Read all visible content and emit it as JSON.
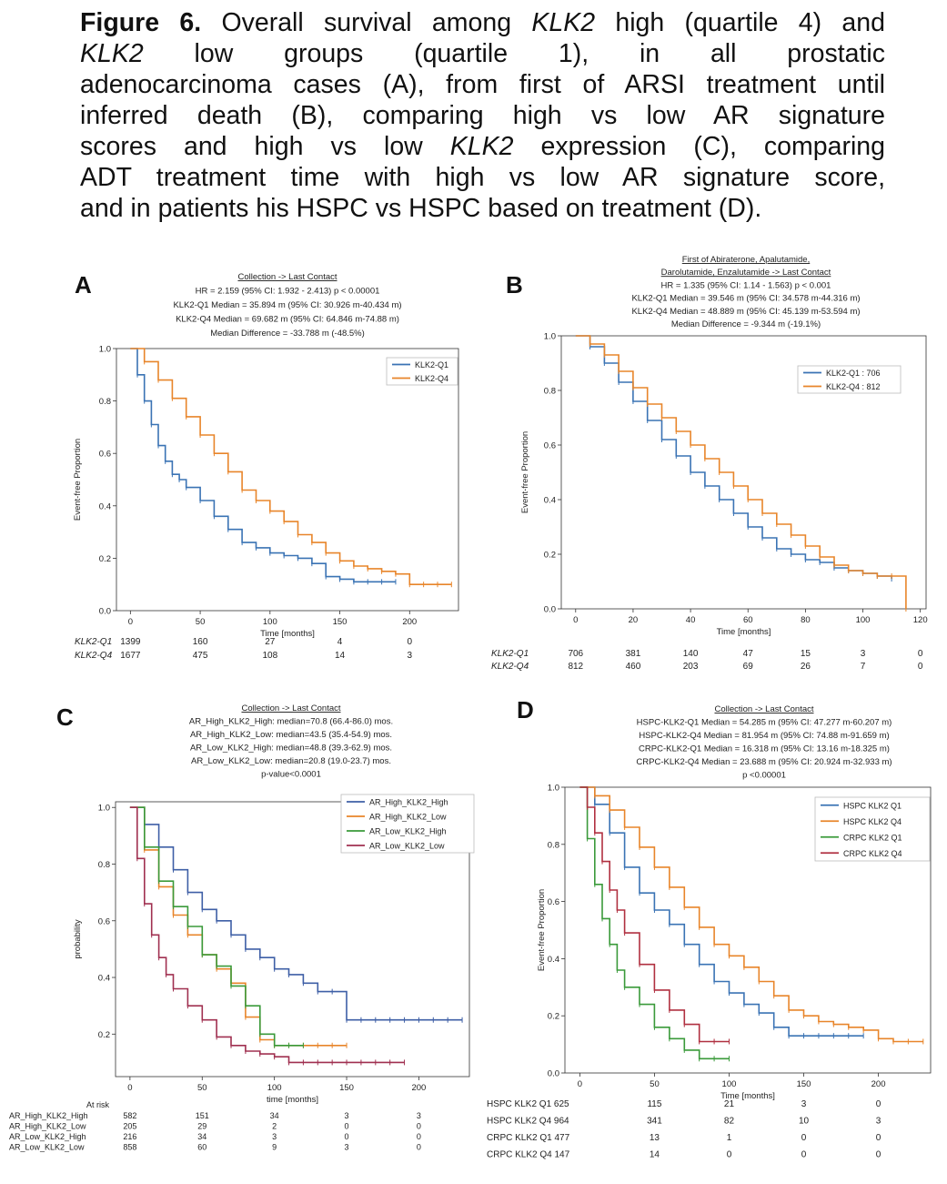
{
  "caption": {
    "lines": [
      [
        {
          "t": "Figure 6.",
          "s": "b"
        },
        {
          "t": " Overall survival among "
        },
        {
          "t": "KLK2",
          "s": "i"
        },
        {
          "t": " high (quartile 4) and"
        }
      ],
      [
        {
          "t": "KLK2",
          "s": "i"
        },
        {
          "t": " low groups (quartile 1), in all prostatic"
        }
      ],
      [
        {
          "t": "adenocarcinoma cases (A), from first of ARSI treatment until"
        }
      ],
      [
        {
          "t": "inferred death (B), comparing high vs low AR signature"
        }
      ],
      [
        {
          "t": "scores and high vs low "
        },
        {
          "t": "KLK2",
          "s": "i"
        },
        {
          "t": " expression (C), comparing"
        }
      ],
      [
        {
          "t": "ADT treatment time with high vs low AR signature score,"
        }
      ],
      [
        {
          "t": "and in patients his HSPC vs HSPC based on treatment (D)."
        }
      ]
    ]
  },
  "chart_data": [
    {
      "panel": "A",
      "type": "line",
      "title_lines": [
        "Collection -> Last Contact",
        "HR = 2.159 (95% CI: 1.932 - 2.413) p < 0.00001",
        "KLK2-Q1 Median = 35.894 m (95% CI: 30.926 m-40.434 m)",
        "KLK2-Q4 Median = 69.682 m (95% CI: 64.846 m-74.88 m)",
        "Median Difference = -33.788 m (-48.5%)"
      ],
      "xlabel": "Time [months]",
      "ylabel": "Event-free Proportion",
      "xlim": [
        -10,
        235
      ],
      "ylim": [
        0,
        1.0
      ],
      "xticks": [
        0,
        50,
        100,
        150,
        200
      ],
      "yticks": [
        0.0,
        0.2,
        0.4,
        0.6,
        0.8,
        1.0
      ],
      "legend_position": "top-right",
      "series": [
        {
          "name": "KLK2-Q1",
          "color": "#3a73b4",
          "x": [
            0,
            5,
            10,
            15,
            20,
            25,
            30,
            35,
            40,
            50,
            60,
            70,
            80,
            90,
            100,
            110,
            120,
            130,
            140,
            150,
            160,
            170,
            180,
            190
          ],
          "y": [
            1.0,
            0.9,
            0.8,
            0.71,
            0.63,
            0.57,
            0.52,
            0.5,
            0.47,
            0.42,
            0.36,
            0.31,
            0.26,
            0.24,
            0.22,
            0.21,
            0.2,
            0.18,
            0.13,
            0.12,
            0.11,
            0.11,
            0.11,
            0.11
          ]
        },
        {
          "name": "KLK2-Q4",
          "color": "#e8852a",
          "x": [
            0,
            10,
            20,
            30,
            40,
            50,
            60,
            70,
            80,
            90,
            100,
            110,
            120,
            130,
            140,
            150,
            160,
            170,
            180,
            190,
            200,
            210,
            220,
            230
          ],
          "y": [
            1.0,
            0.95,
            0.88,
            0.81,
            0.74,
            0.67,
            0.6,
            0.53,
            0.46,
            0.42,
            0.38,
            0.34,
            0.29,
            0.26,
            0.22,
            0.19,
            0.17,
            0.16,
            0.15,
            0.14,
            0.1,
            0.1,
            0.1,
            0.1
          ]
        }
      ],
      "risk_table": {
        "columns": [
          0,
          50,
          100,
          150,
          200
        ],
        "rows": [
          {
            "label": "KLK2-Q1",
            "values": [
              "1399",
              "160",
              "27",
              "4",
              "0"
            ]
          },
          {
            "label": "KLK2-Q4",
            "values": [
              "1677",
              "475",
              "108",
              "14",
              "3"
            ]
          }
        ]
      }
    },
    {
      "panel": "B",
      "type": "line",
      "title_lines": [
        "First of Abiraterone, Apalutamide,",
        "Darolutamide, Enzalutamide -> Last Contact",
        "HR = 1.335 (95% CI: 1.14 - 1.563) p < 0.001",
        "KLK2-Q1 Median = 39.546 m (95% CI: 34.578 m-44.316 m)",
        "KLK2-Q4 Median = 48.889 m (95% CI: 45.139 m-53.594 m)",
        "Median Difference = -9.344 m (-19.1%)"
      ],
      "xlabel": "Time [months]",
      "ylabel": "Event-free Proportion",
      "xlim": [
        -5,
        122
      ],
      "ylim": [
        0,
        1.0
      ],
      "xticks": [
        0,
        20,
        40,
        60,
        80,
        100,
        120
      ],
      "yticks": [
        0.0,
        0.2,
        0.4,
        0.6,
        0.8,
        1.0
      ],
      "legend_position": "top-right",
      "series": [
        {
          "name": "KLK2-Q1 : 706",
          "color": "#3a73b4",
          "x": [
            0,
            5,
            10,
            15,
            20,
            25,
            30,
            35,
            40,
            45,
            50,
            55,
            60,
            65,
            70,
            75,
            80,
            85,
            90,
            95,
            100,
            105,
            110
          ],
          "y": [
            1.0,
            0.96,
            0.9,
            0.83,
            0.76,
            0.69,
            0.62,
            0.56,
            0.5,
            0.45,
            0.4,
            0.35,
            0.3,
            0.26,
            0.22,
            0.2,
            0.18,
            0.17,
            0.15,
            0.14,
            0.13,
            0.12,
            0.11
          ]
        },
        {
          "name": "KLK2-Q4 : 812",
          "color": "#e8852a",
          "x": [
            0,
            5,
            10,
            15,
            20,
            25,
            30,
            35,
            40,
            45,
            50,
            55,
            60,
            65,
            70,
            75,
            80,
            85,
            90,
            95,
            100,
            105,
            110,
            115
          ],
          "y": [
            1.0,
            0.97,
            0.93,
            0.87,
            0.81,
            0.75,
            0.7,
            0.65,
            0.6,
            0.55,
            0.5,
            0.45,
            0.4,
            0.35,
            0.31,
            0.27,
            0.23,
            0.19,
            0.16,
            0.14,
            0.13,
            0.12,
            0.12,
            0.0
          ]
        }
      ],
      "risk_table": {
        "columns": [
          0,
          20,
          40,
          60,
          80,
          100,
          120
        ],
        "rows": [
          {
            "label": "KLK2-Q1",
            "values": [
              "706",
              "381",
              "140",
              "47",
              "15",
              "3",
              "0"
            ]
          },
          {
            "label": "KLK2-Q4",
            "values": [
              "812",
              "460",
              "203",
              "69",
              "26",
              "7",
              "0"
            ]
          }
        ]
      }
    },
    {
      "panel": "C",
      "type": "line",
      "title_lines": [
        "Collection -> Last Contact",
        "AR_High_KLK2_High: median=70.8 (66.4-86.0) mos.",
        "AR_High_KLK2_Low: median=43.5 (35.4-54.9) mos.",
        "AR_Low_KLK2_High: median=48.8 (39.3-62.9) mos.",
        "AR_Low_KLK2_Low: median=20.8 (19.0-23.7) mos.",
        "p-value<0.0001"
      ],
      "xlabel": "time [months]",
      "ylabel": "probability",
      "xlim": [
        -10,
        235
      ],
      "ylim": [
        0.05,
        1.02
      ],
      "xticks": [
        0,
        50,
        100,
        150,
        200
      ],
      "yticks": [
        0.2,
        0.4,
        0.6,
        0.8,
        1.0
      ],
      "legend_position": "top-right",
      "series": [
        {
          "name": "AR_High_KLK2_High",
          "color": "#3e5fa6",
          "x": [
            0,
            10,
            20,
            30,
            40,
            50,
            60,
            70,
            80,
            90,
            100,
            110,
            120,
            130,
            140,
            150,
            160,
            170,
            180,
            190,
            200,
            210,
            220,
            230
          ],
          "y": [
            1.0,
            0.94,
            0.86,
            0.78,
            0.7,
            0.64,
            0.6,
            0.55,
            0.5,
            0.47,
            0.43,
            0.41,
            0.38,
            0.35,
            0.35,
            0.25,
            0.25,
            0.25,
            0.25,
            0.25,
            0.25,
            0.25,
            0.25,
            0.25
          ]
        },
        {
          "name": "AR_High_KLK2_Low",
          "color": "#e8852a",
          "x": [
            0,
            10,
            20,
            30,
            40,
            50,
            60,
            70,
            80,
            90,
            100,
            110,
            120,
            130,
            140,
            150
          ],
          "y": [
            1.0,
            0.85,
            0.72,
            0.62,
            0.55,
            0.48,
            0.43,
            0.38,
            0.26,
            0.18,
            0.16,
            0.16,
            0.16,
            0.16,
            0.16,
            0.16
          ]
        },
        {
          "name": "AR_Low_KLK2_High",
          "color": "#3a9a3a",
          "x": [
            0,
            10,
            20,
            30,
            40,
            50,
            60,
            70,
            80,
            90,
            100,
            110,
            120
          ],
          "y": [
            1.0,
            0.86,
            0.74,
            0.65,
            0.58,
            0.48,
            0.44,
            0.37,
            0.3,
            0.2,
            0.16,
            0.16,
            0.16
          ]
        },
        {
          "name": "AR_Low_KLK2_Low",
          "color": "#a03050",
          "x": [
            0,
            5,
            10,
            15,
            20,
            25,
            30,
            40,
            50,
            60,
            70,
            80,
            90,
            100,
            110,
            120,
            130,
            140,
            150,
            160,
            170,
            180,
            190
          ],
          "y": [
            1.0,
            0.82,
            0.66,
            0.55,
            0.47,
            0.41,
            0.36,
            0.3,
            0.25,
            0.19,
            0.16,
            0.14,
            0.13,
            0.12,
            0.1,
            0.1,
            0.1,
            0.1,
            0.1,
            0.1,
            0.1,
            0.1,
            0.1
          ]
        }
      ],
      "risk_table": {
        "header": "At risk",
        "columns": [
          0,
          50,
          100,
          150,
          200
        ],
        "rows": [
          {
            "label": "AR_High_KLK2_High",
            "values": [
              "582",
              "151",
              "34",
              "3",
              "3"
            ]
          },
          {
            "label": "AR_High_KLK2_Low",
            "values": [
              "205",
              "29",
              "2",
              "0",
              "0"
            ]
          },
          {
            "label": "AR_Low_KLK2_High",
            "values": [
              "216",
              "34",
              "3",
              "0",
              "0"
            ]
          },
          {
            "label": "AR_Low_KLK2_Low",
            "values": [
              "858",
              "60",
              "9",
              "3",
              "0"
            ]
          }
        ]
      }
    },
    {
      "panel": "D",
      "type": "line",
      "title_lines": [
        "Collection -> Last Contact",
        "HSPC-KLK2-Q1 Median = 54.285 m (95% CI: 47.277 m-60.207 m)",
        "HSPC-KLK2-Q4 Median = 81.954 m (95% CI: 74.88 m-91.659 m)",
        "CRPC-KLK2-Q1 Median = 16.318 m (95% CI: 13.16 m-18.325 m)",
        "CRPC-KLK2-Q4 Median = 23.688 m (95% CI: 20.924 m-32.933 m)",
        "p <0.00001"
      ],
      "xlabel": "Time [months]",
      "ylabel": "Event-free Proportion",
      "xlim": [
        -10,
        235
      ],
      "ylim": [
        0,
        1.0
      ],
      "xticks": [
        0,
        50,
        100,
        150,
        200
      ],
      "yticks": [
        0.0,
        0.2,
        0.4,
        0.6,
        0.8,
        1.0
      ],
      "legend_position": "top-right",
      "series": [
        {
          "name": "HSPC KLK2 Q1",
          "color": "#3a73b4",
          "x": [
            0,
            10,
            20,
            30,
            40,
            50,
            60,
            70,
            80,
            90,
            100,
            110,
            120,
            130,
            140,
            150,
            160,
            170,
            180,
            190
          ],
          "y": [
            1.0,
            0.94,
            0.84,
            0.72,
            0.63,
            0.57,
            0.52,
            0.45,
            0.38,
            0.32,
            0.28,
            0.24,
            0.21,
            0.16,
            0.13,
            0.13,
            0.13,
            0.13,
            0.13,
            0.13
          ]
        },
        {
          "name": "HSPC KLK2 Q4",
          "color": "#e8852a",
          "x": [
            0,
            10,
            20,
            30,
            40,
            50,
            60,
            70,
            80,
            90,
            100,
            110,
            120,
            130,
            140,
            150,
            160,
            170,
            180,
            190,
            200,
            210,
            220,
            230
          ],
          "y": [
            1.0,
            0.97,
            0.92,
            0.86,
            0.79,
            0.72,
            0.65,
            0.58,
            0.51,
            0.45,
            0.41,
            0.37,
            0.32,
            0.27,
            0.22,
            0.2,
            0.18,
            0.17,
            0.16,
            0.15,
            0.12,
            0.11,
            0.11,
            0.11
          ]
        },
        {
          "name": "CRPC KLK2 Q1",
          "color": "#3a9a3a",
          "x": [
            0,
            5,
            10,
            15,
            20,
            25,
            30,
            40,
            50,
            60,
            70,
            80,
            90,
            100
          ],
          "y": [
            1.0,
            0.82,
            0.66,
            0.54,
            0.45,
            0.36,
            0.3,
            0.24,
            0.16,
            0.12,
            0.08,
            0.05,
            0.05,
            0.05
          ]
        },
        {
          "name": "CRPC KLK2 Q4",
          "color": "#b03040",
          "x": [
            0,
            5,
            10,
            15,
            20,
            25,
            30,
            40,
            50,
            60,
            70,
            80,
            90,
            100
          ],
          "y": [
            1.0,
            0.93,
            0.84,
            0.74,
            0.64,
            0.57,
            0.49,
            0.38,
            0.29,
            0.22,
            0.17,
            0.11,
            0.11,
            0.11
          ]
        }
      ],
      "risk_table": {
        "columns": [
          0,
          50,
          100,
          150,
          200
        ],
        "rows": [
          {
            "label": "HSPC KLK2 Q1 625",
            "values": [
              "115",
              "21",
              "3",
              "0"
            ]
          },
          {
            "label": "HSPC KLK2 Q4 964",
            "values": [
              "341",
              "82",
              "10",
              "3"
            ]
          },
          {
            "label": "CRPC KLK2 Q1 477",
            "values": [
              "13",
              "1",
              "0",
              "0"
            ]
          },
          {
            "label": "CRPC KLK2 Q4 147",
            "values": [
              "14",
              "0",
              "0",
              "0"
            ]
          }
        ]
      }
    }
  ]
}
